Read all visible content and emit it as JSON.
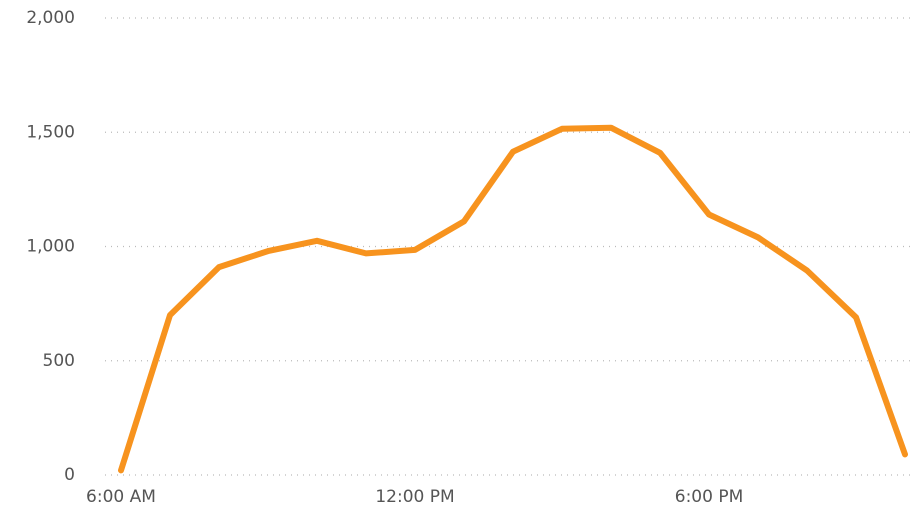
{
  "chart_data": {
    "type": "line",
    "x": [
      6,
      7,
      8,
      9,
      10,
      11,
      12,
      13,
      14,
      15,
      16,
      17,
      18,
      19,
      20,
      21,
      22
    ],
    "series": [
      {
        "color": "#f7931e",
        "values": [
          20,
          700,
          910,
          980,
          1025,
          970,
          985,
          1110,
          1415,
          1515,
          1520,
          1410,
          1140,
          1040,
          895,
          690,
          90
        ]
      }
    ],
    "xlim": [
      6,
      22
    ],
    "xticks": [
      {
        "value": 6,
        "label": "6:00 AM"
      },
      {
        "value": 12,
        "label": "12:00 PM"
      },
      {
        "value": 18,
        "label": "6:00 PM"
      }
    ],
    "ylim": [
      0,
      2000
    ],
    "yticks": [
      0,
      500,
      {
        "value": 1000,
        "label": "1,000"
      },
      {
        "value": 1500,
        "label": "1,500"
      },
      {
        "value": 2000,
        "label": "2,000"
      }
    ],
    "grid": true
  }
}
